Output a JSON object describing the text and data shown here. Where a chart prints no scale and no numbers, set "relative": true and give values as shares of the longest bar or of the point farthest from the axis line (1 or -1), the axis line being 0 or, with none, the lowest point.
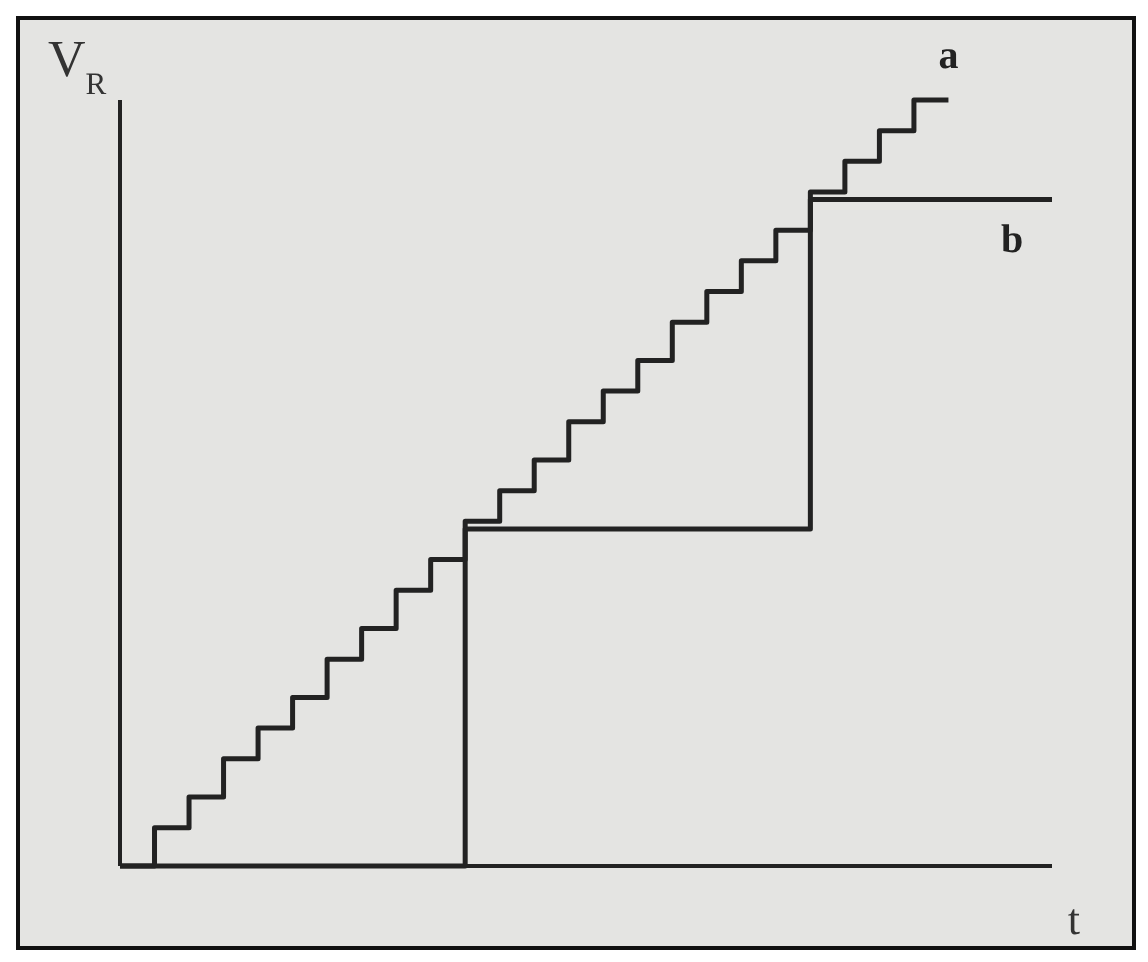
{
  "chart_data": {
    "type": "step",
    "relative": true,
    "xlabel": "t",
    "ylabel": "V$_{R}$",
    "marker": "none",
    "line_style": "solid",
    "categories": [
      null,
      null,
      null,
      null,
      null,
      null,
      null,
      null,
      null,
      null,
      null,
      null,
      null,
      null,
      null,
      null,
      null,
      null,
      null,
      null,
      null,
      null,
      null,
      null,
      null,
      null,
      null,
      null
    ],
    "series": [
      {
        "name": "a",
        "color": "#222222",
        "values": [
          0,
          0.05,
          0.09,
          0.14,
          0.18,
          0.22,
          0.27,
          0.31,
          0.36,
          0.4,
          0.45,
          0.49,
          0.53,
          0.58,
          0.62,
          0.66,
          0.71,
          0.75,
          0.79,
          0.83,
          0.88,
          0.92,
          0.96,
          1,
          1,
          null,
          null,
          null
        ]
      },
      {
        "name": "b",
        "color": "#222222",
        "values": [
          0,
          0,
          0,
          0,
          0,
          0,
          0,
          0,
          0,
          0,
          0.44,
          0.44,
          0.44,
          0.44,
          0.44,
          0.44,
          0.44,
          0.44,
          0.44,
          0.44,
          0.87,
          0.87,
          0.87,
          0.87,
          0.87,
          0.87,
          0.87,
          0.87
        ]
      }
    ]
  }
}
